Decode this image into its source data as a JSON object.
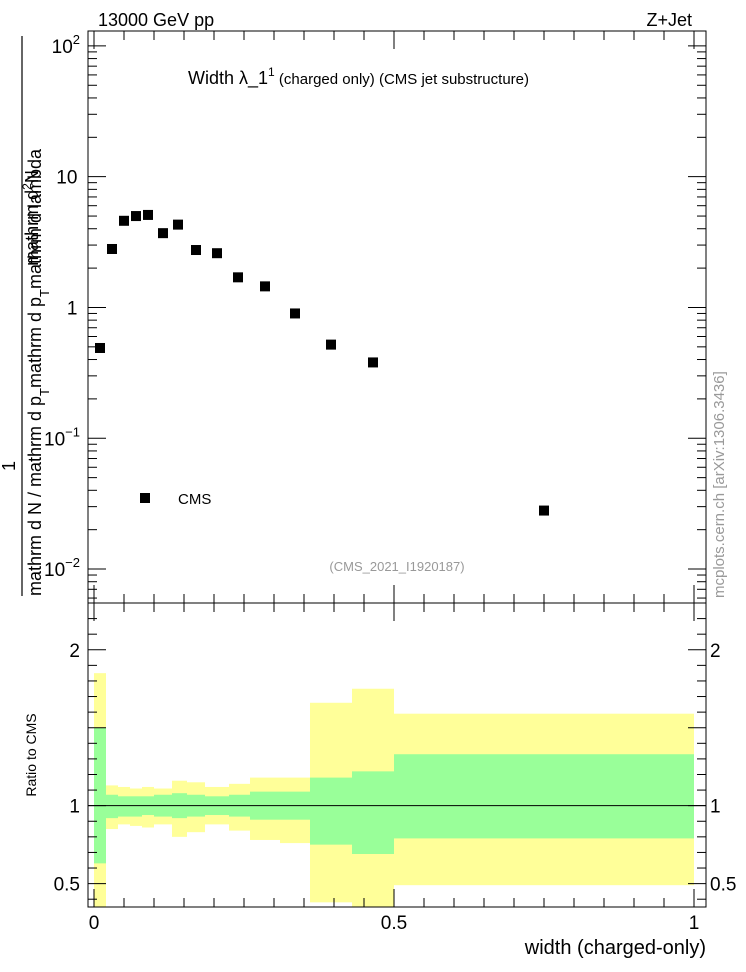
{
  "header": {
    "energy_label": "13000 GeV pp",
    "process_label": "Z+Jet"
  },
  "watermark": {
    "side_text": "mcplots.cern.ch [arXiv:1306.3436]",
    "analysis_id": "(CMS_2021_I1920187)"
  },
  "chart_data": [
    {
      "type": "scatter",
      "panel": "main",
      "title": "Width λ_1",
      "title_superscript": "1",
      "subtitle": " (charged only) (CMS jet substructure)",
      "xlabel": "width (charged-only)",
      "ylabel_numerator_1": "1",
      "ylabel_numerator_2": "mathrm d",
      "ylabel_numerator_sup": "2",
      "ylabel_numerator_3": "N",
      "ylabel_denominator_1": "mathrm d N / mathrm d p",
      "ylabel_denominator_2": "mathrm d p",
      "ylabel_denominator_3": "mathrm d lambda",
      "ylabel_sub": "T",
      "yscale": "log",
      "xlim": [
        -0.01,
        1.02
      ],
      "ylim": [
        0.0055,
        130
      ],
      "y_tick_labels": [
        {
          "value": 0.01,
          "base": "10",
          "exp": "−2"
        },
        {
          "value": 0.1,
          "base": "10",
          "exp": "−1"
        },
        {
          "value": 1,
          "base": "1",
          "exp": ""
        },
        {
          "value": 10,
          "base": "10",
          "exp": ""
        },
        {
          "value": 100,
          "base": "10",
          "exp": "2"
        }
      ],
      "legend": {
        "label": "CMS",
        "position": "bottom-left"
      },
      "series": [
        {
          "name": "CMS",
          "points": [
            {
              "x": 0.01,
              "y": 0.49
            },
            {
              "x": 0.03,
              "y": 2.8
            },
            {
              "x": 0.05,
              "y": 4.6
            },
            {
              "x": 0.07,
              "y": 5.0
            },
            {
              "x": 0.09,
              "y": 5.1
            },
            {
              "x": 0.115,
              "y": 3.7
            },
            {
              "x": 0.14,
              "y": 4.3
            },
            {
              "x": 0.17,
              "y": 2.75
            },
            {
              "x": 0.205,
              "y": 2.6
            },
            {
              "x": 0.24,
              "y": 1.7
            },
            {
              "x": 0.285,
              "y": 1.45
            },
            {
              "x": 0.335,
              "y": 0.9
            },
            {
              "x": 0.395,
              "y": 0.52
            },
            {
              "x": 0.465,
              "y": 0.38
            },
            {
              "x": 0.75,
              "y": 0.028
            }
          ]
        }
      ]
    },
    {
      "type": "area",
      "panel": "ratio",
      "ylabel": "Ratio to CMS",
      "xlabel": "width (charged-only)",
      "xlim": [
        -0.01,
        1.02
      ],
      "ylim": [
        0.35,
        2.3
      ],
      "x_tick_labels": [
        {
          "value": 0,
          "label": "0"
        },
        {
          "value": 0.5,
          "label": "0.5"
        },
        {
          "value": 1,
          "label": "1"
        }
      ],
      "y_tick_labels": [
        {
          "value": 0.5,
          "label": "0.5"
        },
        {
          "value": 1,
          "label": "1"
        },
        {
          "value": 2,
          "label": "2"
        }
      ],
      "reference_line": 1,
      "band_colors": {
        "outer": "#ffff99",
        "inner": "#99ff99"
      },
      "bins": [
        {
          "x0": 0.0,
          "x1": 0.02,
          "inner": [
            0.63,
            1.5
          ],
          "outer": [
            0.35,
            1.85
          ]
        },
        {
          "x0": 0.02,
          "x1": 0.04,
          "inner": [
            0.92,
            1.07
          ],
          "outer": [
            0.85,
            1.13
          ]
        },
        {
          "x0": 0.04,
          "x1": 0.06,
          "inner": [
            0.93,
            1.06
          ],
          "outer": [
            0.88,
            1.12
          ]
        },
        {
          "x0": 0.06,
          "x1": 0.08,
          "inner": [
            0.93,
            1.06
          ],
          "outer": [
            0.87,
            1.11
          ]
        },
        {
          "x0": 0.08,
          "x1": 0.1,
          "inner": [
            0.94,
            1.06
          ],
          "outer": [
            0.86,
            1.12
          ]
        },
        {
          "x0": 0.1,
          "x1": 0.13,
          "inner": [
            0.93,
            1.07
          ],
          "outer": [
            0.88,
            1.11
          ]
        },
        {
          "x0": 0.13,
          "x1": 0.155,
          "inner": [
            0.92,
            1.08
          ],
          "outer": [
            0.8,
            1.16
          ]
        },
        {
          "x0": 0.155,
          "x1": 0.185,
          "inner": [
            0.93,
            1.07
          ],
          "outer": [
            0.83,
            1.15
          ]
        },
        {
          "x0": 0.185,
          "x1": 0.225,
          "inner": [
            0.94,
            1.06
          ],
          "outer": [
            0.88,
            1.12
          ]
        },
        {
          "x0": 0.225,
          "x1": 0.26,
          "inner": [
            0.93,
            1.07
          ],
          "outer": [
            0.84,
            1.14
          ]
        },
        {
          "x0": 0.26,
          "x1": 0.31,
          "inner": [
            0.91,
            1.09
          ],
          "outer": [
            0.78,
            1.18
          ]
        },
        {
          "x0": 0.31,
          "x1": 0.36,
          "inner": [
            0.91,
            1.09
          ],
          "outer": [
            0.76,
            1.18
          ]
        },
        {
          "x0": 0.36,
          "x1": 0.43,
          "inner": [
            0.75,
            1.18
          ],
          "outer": [
            0.38,
            1.66
          ]
        },
        {
          "x0": 0.43,
          "x1": 0.5,
          "inner": [
            0.69,
            1.22
          ],
          "outer": [
            0.35,
            1.75
          ]
        },
        {
          "x0": 0.5,
          "x1": 1.0,
          "inner": [
            0.79,
            1.33
          ],
          "outer": [
            0.49,
            1.59
          ]
        }
      ]
    }
  ]
}
